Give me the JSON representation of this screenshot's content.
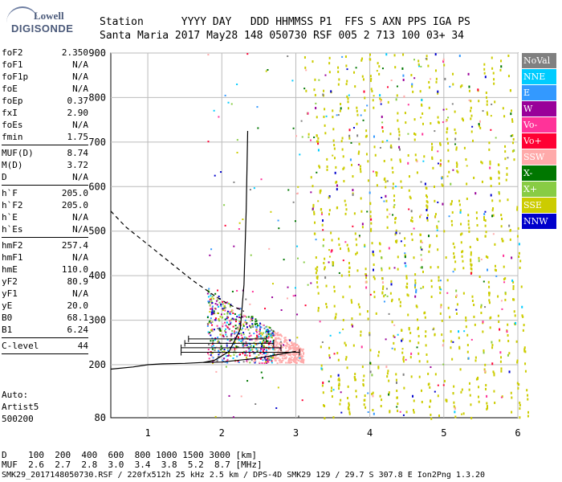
{
  "logo": {
    "line1": "Lowell",
    "line2": "DIGISONDE"
  },
  "header": {
    "labels": [
      "Station",
      "YYYY",
      "DAY",
      "DDD",
      "HHMMSS",
      "P1",
      "FFS",
      "S",
      "AXN",
      "PPS",
      "IGA",
      "PS"
    ],
    "values": [
      "Santa Maria",
      "2017",
      "May28",
      "148",
      "050730",
      "RSF",
      "005",
      "2",
      "713",
      "100",
      "03+",
      "34"
    ]
  },
  "params": [
    {
      "k": "foF2",
      "v": "2.350"
    },
    {
      "k": "foF1",
      "v": "N/A"
    },
    {
      "k": "foF1p",
      "v": "N/A"
    },
    {
      "k": "foE",
      "v": "N/A"
    },
    {
      "k": "foEp",
      "v": "0.37"
    },
    {
      "k": "fxI",
      "v": "2.90"
    },
    {
      "k": "foEs",
      "v": "N/A"
    },
    {
      "k": "fmin",
      "v": "1.75"
    },
    {
      "sep": true
    },
    {
      "k": "MUF(D)",
      "v": "8.74"
    },
    {
      "k": "M(D)",
      "v": "3.72"
    },
    {
      "k": "D",
      "v": "N/A"
    },
    {
      "sep": true
    },
    {
      "k": "h`F",
      "v": "205.0"
    },
    {
      "k": "h`F2",
      "v": "205.0"
    },
    {
      "k": "h`E",
      "v": "N/A"
    },
    {
      "k": "h`Es",
      "v": "N/A"
    },
    {
      "sep": true
    },
    {
      "k": "hmF2",
      "v": "257.4"
    },
    {
      "k": "hmF1",
      "v": "N/A"
    },
    {
      "k": "hmE",
      "v": "110.0"
    },
    {
      "k": "yF2",
      "v": "80.9"
    },
    {
      "k": "yF1",
      "v": "N/A"
    },
    {
      "k": "yE",
      "v": "20.0"
    },
    {
      "k": "B0",
      "v": "68.1"
    },
    {
      "k": "B1",
      "v": "6.24"
    },
    {
      "sep": true
    },
    {
      "k": "C-level",
      "v": "44"
    },
    {
      "sep": true
    }
  ],
  "auto": {
    "l1": "Auto:",
    "l2": "Artist5",
    "l3": "500200"
  },
  "legend": [
    {
      "label": "NoVal",
      "color": "#808080"
    },
    {
      "label": "NNE",
      "color": "#00ccff"
    },
    {
      "label": "E",
      "color": "#3399ff"
    },
    {
      "label": "W",
      "color": "#990099"
    },
    {
      "label": "Vo-",
      "color": "#ff3399"
    },
    {
      "label": "Vo+",
      "color": "#ff0033"
    },
    {
      "label": "SSW",
      "color": "#ffaaaa"
    },
    {
      "label": "X-",
      "color": "#007700"
    },
    {
      "label": "X+",
      "color": "#88cc44"
    },
    {
      "label": "SSE",
      "color": "#cccc00"
    },
    {
      "label": "NNW",
      "color": "#0000cc"
    }
  ],
  "footer": {
    "d_label": "D",
    "d_values": [
      "100",
      "200",
      "400",
      "600",
      "800",
      "1000",
      "1500",
      "3000",
      "[km]"
    ],
    "muf_label": "MUF",
    "muf_values": [
      "2.6",
      "2.7",
      "2.8",
      "3.0",
      "3.4",
      "3.8",
      "5.2",
      "8.7",
      "[MHz]"
    ],
    "fileinfo": "SMK29_2017148050730.RSF / 220fx512h 25 kHz 2.5 km / DPS-4D SMK29 129 / 29.7 S 307.8 E Ion2Png 1.3.20"
  },
  "chart_data": {
    "type": "scatter",
    "title": "",
    "xlabel": "",
    "ylabel": "",
    "xlim": [
      0.5,
      6.0
    ],
    "ylim": [
      80,
      900
    ],
    "x_ticks": [
      1,
      2,
      3,
      4,
      5,
      6
    ],
    "y_ticks": [
      80,
      200,
      300,
      400,
      500,
      600,
      700,
      800,
      900
    ],
    "grid": true,
    "legend_position": "right",
    "fof2_trace": {
      "x": [
        1.75,
        1.9,
        2.1,
        2.25,
        2.3,
        2.33,
        2.35
      ],
      "y": [
        205,
        210,
        230,
        280,
        380,
        550,
        725
      ]
    },
    "low_trace": {
      "x": [
        0.5,
        0.8,
        1.0,
        1.2,
        1.5,
        1.75,
        2.0,
        2.5,
        3.0
      ],
      "y": [
        190,
        195,
        200,
        202,
        203,
        205,
        206,
        215,
        230
      ]
    },
    "dashed_trace": {
      "x": [
        0.5,
        0.7,
        1.0,
        1.3,
        1.6,
        1.9,
        2.1,
        2.3
      ],
      "y": [
        545,
        510,
        470,
        430,
        390,
        355,
        335,
        320
      ]
    },
    "error_bars": [
      {
        "y": 258,
        "x1": 1.55,
        "x2": 2.6
      },
      {
        "y": 248,
        "x1": 1.5,
        "x2": 2.7
      },
      {
        "y": 238,
        "x1": 1.45,
        "x2": 2.8
      },
      {
        "y": 228,
        "x1": 1.45,
        "x2": 3.05
      }
    ]
  }
}
